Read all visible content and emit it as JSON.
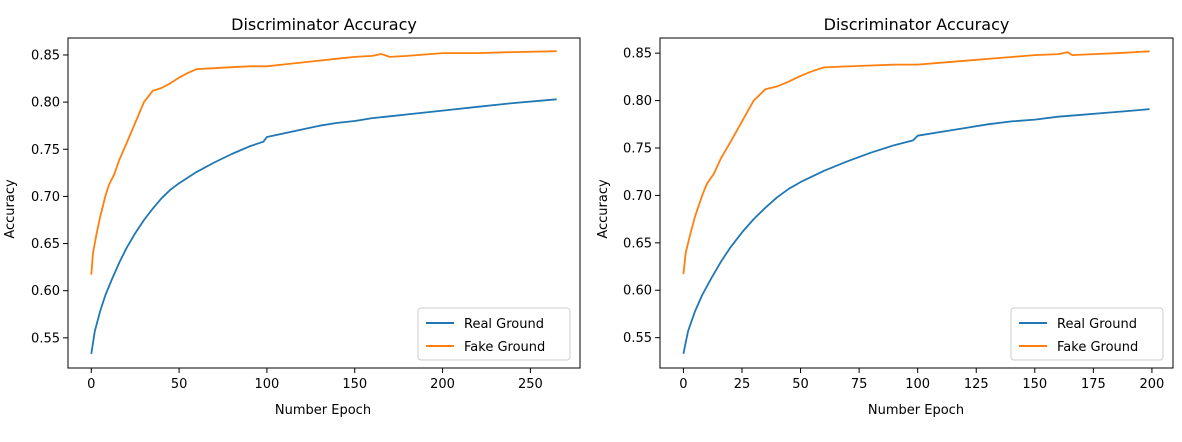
{
  "chart_data": [
    {
      "type": "line",
      "title": "Discriminator Accuracy",
      "xlabel": "Number Epoch",
      "ylabel": "Accuracy",
      "xlim": [
        -13.25,
        278.25
      ],
      "ylim": [
        0.518,
        0.868
      ],
      "xticks": [
        0,
        50,
        100,
        150,
        200,
        250
      ],
      "yticks": [
        0.55,
        0.6,
        0.65,
        0.7,
        0.75,
        0.8,
        0.85
      ],
      "legend_position": "lower-right",
      "grid": false,
      "series": [
        {
          "name": "Real Ground",
          "color": "#1f77b4",
          "x": [
            0,
            2,
            5,
            8,
            12,
            16,
            20,
            25,
            30,
            35,
            40,
            45,
            50,
            60,
            70,
            80,
            90,
            98,
            100,
            110,
            120,
            130,
            140,
            150,
            160,
            170,
            180,
            200,
            220,
            240,
            265
          ],
          "y": [
            0.533,
            0.557,
            0.578,
            0.595,
            0.613,
            0.63,
            0.645,
            0.661,
            0.675,
            0.687,
            0.698,
            0.707,
            0.714,
            0.726,
            0.736,
            0.745,
            0.753,
            0.758,
            0.763,
            0.767,
            0.771,
            0.775,
            0.778,
            0.78,
            0.783,
            0.785,
            0.787,
            0.791,
            0.795,
            0.799,
            0.803
          ]
        },
        {
          "name": "Fake Ground",
          "color": "#ff7f0e",
          "x": [
            0,
            1,
            3,
            5,
            8,
            10,
            13,
            16,
            20,
            25,
            30,
            35,
            40,
            45,
            50,
            55,
            60,
            70,
            80,
            90,
            100,
            110,
            120,
            130,
            140,
            150,
            160,
            165,
            170,
            180,
            200,
            220,
            240,
            265
          ],
          "y": [
            0.617,
            0.64,
            0.66,
            0.678,
            0.7,
            0.712,
            0.723,
            0.739,
            0.756,
            0.778,
            0.8,
            0.812,
            0.815,
            0.82,
            0.826,
            0.831,
            0.835,
            0.836,
            0.837,
            0.838,
            0.838,
            0.84,
            0.842,
            0.844,
            0.846,
            0.848,
            0.849,
            0.851,
            0.848,
            0.849,
            0.852,
            0.852,
            0.853,
            0.854
          ]
        }
      ]
    },
    {
      "type": "line",
      "title": "Discriminator Accuracy",
      "xlabel": "Number Epoch",
      "ylabel": "Accuracy",
      "xlim": [
        -10.0,
        209.0
      ],
      "ylim": [
        0.518,
        0.866
      ],
      "xticks": [
        0,
        25,
        50,
        75,
        100,
        125,
        150,
        175,
        200
      ],
      "yticks": [
        0.55,
        0.6,
        0.65,
        0.7,
        0.75,
        0.8,
        0.85
      ],
      "legend_position": "lower-right",
      "grid": false,
      "series": [
        {
          "name": "Real Ground",
          "color": "#1f77b4",
          "x": [
            0,
            2,
            5,
            8,
            12,
            16,
            20,
            25,
            30,
            35,
            40,
            45,
            50,
            60,
            70,
            80,
            90,
            98,
            100,
            110,
            120,
            130,
            140,
            150,
            160,
            170,
            180,
            190,
            199
          ],
          "y": [
            0.533,
            0.557,
            0.578,
            0.595,
            0.613,
            0.63,
            0.645,
            0.661,
            0.675,
            0.687,
            0.698,
            0.707,
            0.714,
            0.726,
            0.736,
            0.745,
            0.753,
            0.758,
            0.763,
            0.767,
            0.771,
            0.775,
            0.778,
            0.78,
            0.783,
            0.785,
            0.787,
            0.789,
            0.791
          ]
        },
        {
          "name": "Fake Ground",
          "color": "#ff7f0e",
          "x": [
            0,
            1,
            3,
            5,
            8,
            10,
            13,
            16,
            20,
            25,
            30,
            35,
            40,
            45,
            50,
            55,
            60,
            70,
            80,
            90,
            100,
            110,
            120,
            130,
            140,
            150,
            160,
            164,
            166,
            175,
            185,
            199
          ],
          "y": [
            0.617,
            0.64,
            0.66,
            0.678,
            0.7,
            0.712,
            0.723,
            0.739,
            0.756,
            0.778,
            0.8,
            0.812,
            0.815,
            0.82,
            0.826,
            0.831,
            0.835,
            0.836,
            0.837,
            0.838,
            0.838,
            0.84,
            0.842,
            0.844,
            0.846,
            0.848,
            0.849,
            0.851,
            0.848,
            0.849,
            0.85,
            0.852
          ]
        }
      ]
    }
  ]
}
